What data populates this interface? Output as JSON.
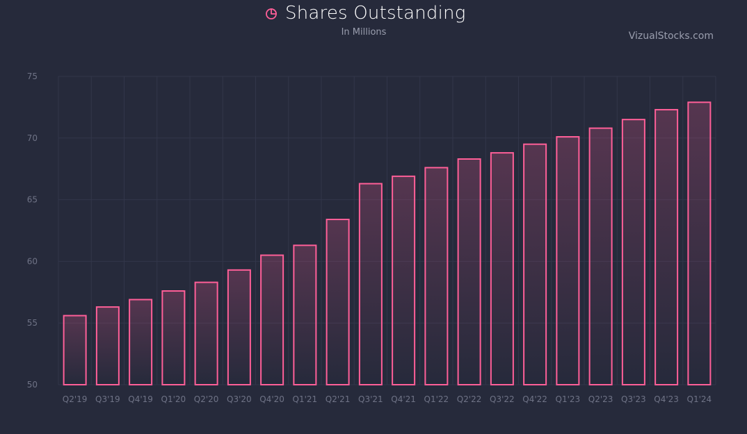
{
  "header": {
    "title": "Shares Outstanding",
    "subtitle": "In Millions",
    "brand": "VizualStocks.com",
    "icon": "pie-chart-icon"
  },
  "colors": {
    "background": "#262a3b",
    "bar_stroke": "#ff5f98",
    "grid": "#32364a",
    "text_muted": "#9a9eae"
  },
  "chart_data": {
    "type": "bar",
    "title": "Shares Outstanding",
    "subtitle": "In Millions",
    "xlabel": "",
    "ylabel": "",
    "categories": [
      "Q2'19",
      "Q3'19",
      "Q4'19",
      "Q1'20",
      "Q2'20",
      "Q3'20",
      "Q4'20",
      "Q1'21",
      "Q2'21",
      "Q3'21",
      "Q4'21",
      "Q1'22",
      "Q2'22",
      "Q3'22",
      "Q4'22",
      "Q1'23",
      "Q2'23",
      "Q3'23",
      "Q4'23",
      "Q1'24"
    ],
    "values": [
      55.6,
      56.3,
      56.9,
      57.6,
      58.3,
      59.3,
      60.5,
      61.3,
      63.4,
      66.3,
      66.9,
      67.6,
      68.3,
      68.8,
      69.5,
      70.1,
      70.8,
      71.5,
      72.3,
      72.9
    ],
    "ylim": [
      50,
      75
    ],
    "yticks": [
      50,
      55,
      60,
      65,
      70,
      75
    ],
    "grid": true,
    "legend": "none"
  }
}
